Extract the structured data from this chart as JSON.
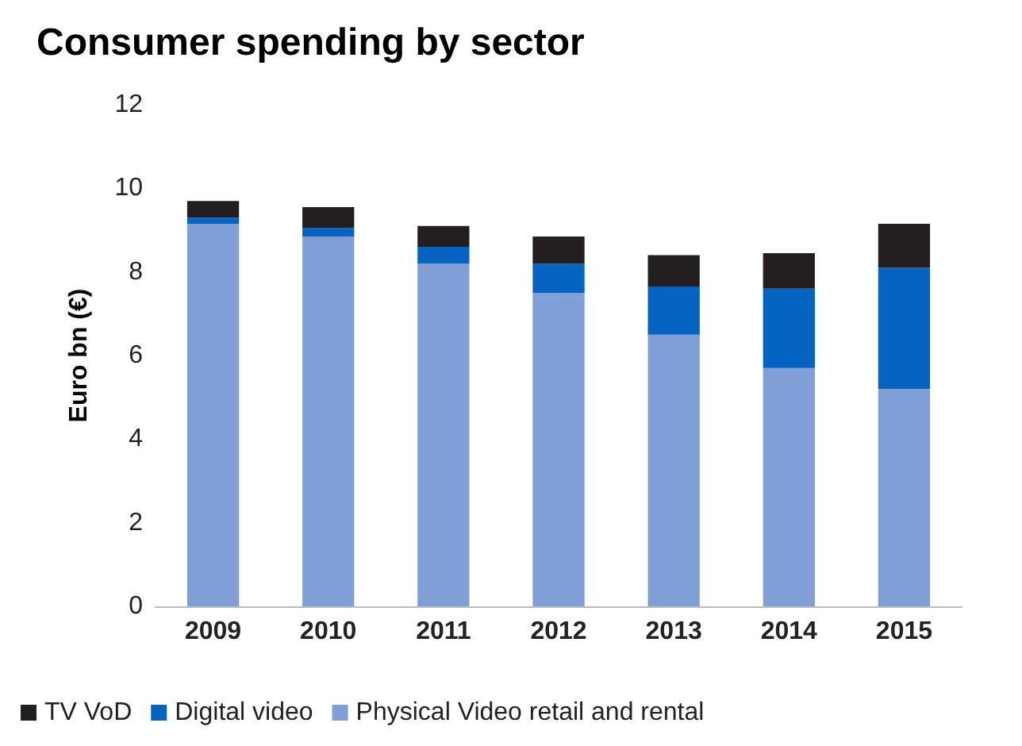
{
  "chart_data": {
    "type": "bar",
    "title": "Consumer spending by sector",
    "ylabel": "Euro bn (€)",
    "categories": [
      "2009",
      "2010",
      "2011",
      "2012",
      "2013",
      "2014",
      "2015"
    ],
    "stacked": true,
    "series": [
      {
        "name": "Physical Video retail and rental",
        "color": "#7f9fd6",
        "values": [
          9.15,
          8.85,
          8.2,
          7.5,
          6.5,
          5.7,
          5.2
        ]
      },
      {
        "name": "Digital video",
        "color": "#0563c1",
        "values": [
          0.15,
          0.2,
          0.4,
          0.7,
          1.15,
          1.9,
          2.9
        ]
      },
      {
        "name": "TV VoD",
        "color": "#231f20",
        "values": [
          0.4,
          0.5,
          0.5,
          0.65,
          0.75,
          0.85,
          1.05
        ]
      }
    ],
    "ylim": [
      0,
      12
    ],
    "yticks": [
      0,
      2,
      4,
      6,
      8,
      10,
      12
    ],
    "grid": false,
    "legend": "bottom"
  }
}
